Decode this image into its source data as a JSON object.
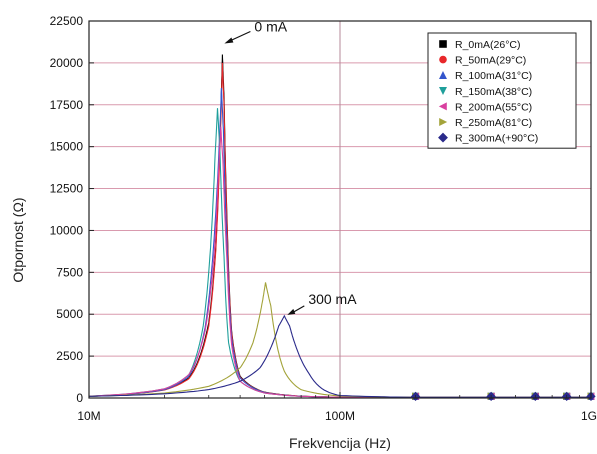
{
  "chart_data": {
    "type": "line",
    "xlabel": "Frekvencija (Hz)",
    "ylabel": "Otpornost (Ω)",
    "x_scale": "log",
    "xlim": [
      10000000,
      1000000000
    ],
    "ylim": [
      0,
      22500
    ],
    "x_ticks": [
      {
        "value": 10000000,
        "label": "10M"
      },
      {
        "value": 100000000,
        "label": "100M"
      },
      {
        "value": 1000000000,
        "label": "1G"
      }
    ],
    "y_ticks": [
      0,
      2500,
      5000,
      7500,
      10000,
      12500,
      15000,
      17500,
      20000,
      22500
    ],
    "grid": true,
    "legend_position": "top-right",
    "series": [
      {
        "name": "R_0mA(26°C)",
        "color": "#000000",
        "marker": "square",
        "x": [
          10000000,
          20000000,
          25000000,
          30000000,
          32000000,
          33500000,
          34000000,
          34500000,
          35500000,
          37000000,
          40000000,
          50000000,
          70000000,
          100000000,
          200000000,
          400000000,
          600000000,
          800000000,
          1000000000
        ],
        "y": [
          100,
          500,
          1200,
          4500,
          9000,
          17000,
          20500,
          18000,
          10500,
          4000,
          1300,
          350,
          110,
          50,
          40,
          40,
          40,
          40,
          40
        ]
      },
      {
        "name": "R_50mA(29°C)",
        "color": "#e8272a",
        "marker": "circle",
        "x": [
          10000000,
          20000000,
          25000000,
          30000000,
          32000000,
          33500000,
          34000000,
          34500000,
          35500000,
          37000000,
          40000000,
          50000000,
          70000000,
          100000000,
          200000000,
          400000000,
          600000000,
          800000000,
          1000000000
        ],
        "y": [
          100,
          480,
          1150,
          4300,
          8800,
          16500,
          20000,
          17500,
          10200,
          3900,
          1250,
          340,
          110,
          50,
          40,
          40,
          40,
          40,
          40
        ]
      },
      {
        "name": "R_100mA(31°C)",
        "color": "#3355cc",
        "marker": "triangle-up",
        "x": [
          10000000,
          20000000,
          25000000,
          29000000,
          31500000,
          33000000,
          33700000,
          34300000,
          35500000,
          37000000,
          40000000,
          50000000,
          70000000,
          100000000,
          200000000,
          400000000,
          600000000,
          800000000,
          1000000000
        ],
        "y": [
          100,
          500,
          1300,
          4200,
          9500,
          15000,
          18500,
          16000,
          9000,
          3600,
          1200,
          330,
          100,
          50,
          40,
          40,
          40,
          40,
          40
        ]
      },
      {
        "name": "R_150mA(38°C)",
        "color": "#1f9f9b",
        "marker": "triangle-down",
        "x": [
          10000000,
          20000000,
          25000000,
          28500000,
          30500000,
          31800000,
          32500000,
          33200000,
          34500000,
          36000000,
          40000000,
          50000000,
          70000000,
          100000000,
          200000000,
          400000000,
          600000000,
          800000000,
          1000000000
        ],
        "y": [
          110,
          550,
          1400,
          4300,
          9000,
          14500,
          17300,
          15000,
          8500,
          3300,
          1000,
          300,
          100,
          50,
          40,
          40,
          40,
          40,
          40
        ]
      },
      {
        "name": "R_200mA(55°C)",
        "color": "#d9409f",
        "marker": "triangle-left",
        "x": [
          10000000,
          20000000,
          25000000,
          29000000,
          31500000,
          32800000,
          33500000,
          34200000,
          35500000,
          37000000,
          40000000,
          50000000,
          70000000,
          100000000,
          200000000,
          400000000,
          600000000,
          800000000,
          1000000000
        ],
        "y": [
          110,
          550,
          1400,
          4000,
          8500,
          13500,
          16200,
          14000,
          8000,
          3200,
          1000,
          300,
          100,
          50,
          40,
          40,
          40,
          40,
          40
        ]
      },
      {
        "name": "R_250mA(81°C)",
        "color": "#a3a33a",
        "marker": "triangle-right",
        "x": [
          10000000,
          20000000,
          30000000,
          40000000,
          45000000,
          48000000,
          50500000,
          53000000,
          56000000,
          60000000,
          70000000,
          100000000,
          200000000,
          400000000,
          600000000,
          800000000,
          1000000000
        ],
        "y": [
          100,
          300,
          700,
          1800,
          3300,
          5000,
          6900,
          5500,
          3200,
          1600,
          500,
          120,
          40,
          40,
          40,
          40,
          40
        ]
      },
      {
        "name": "R_300mA(+90°C)",
        "color": "#2a2a8a",
        "marker": "diamond",
        "x": [
          10000000,
          20000000,
          30000000,
          40000000,
          48000000,
          53000000,
          57000000,
          60000000,
          63000000,
          67000000,
          75000000,
          100000000,
          200000000,
          400000000,
          600000000,
          800000000,
          1000000000
        ],
        "y": [
          100,
          250,
          500,
          1000,
          1800,
          3000,
          4300,
          4900,
          4300,
          3000,
          1500,
          150,
          40,
          40,
          40,
          40,
          40
        ]
      }
    ],
    "annotations": [
      {
        "text": "0 mA",
        "x": 34000000,
        "y": 20500
      },
      {
        "text": "300 mA",
        "x": 60000000,
        "y": 4900
      }
    ]
  }
}
